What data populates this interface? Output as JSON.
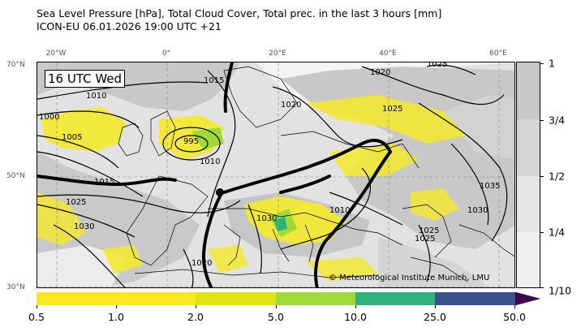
{
  "title": {
    "line1": "Sea Level Pressure [hPa], Total Cloud Cover, Total prec. in the last 3 hours [mm]",
    "line2": "ICON-EU 06.01.2026 19:00 UTC +21"
  },
  "map": {
    "valid_time": "16 UTC Wed",
    "credit": "© Meteorological Institute Munich, LMU",
    "lon_labels": [
      "20°W",
      "0°",
      "20°E",
      "40°E",
      "60°E"
    ],
    "lat_labels": [
      "70°N",
      "50°N",
      "30°N"
    ],
    "isobar_labels": [
      "1025",
      "1010",
      "1015",
      "1020",
      "1000",
      "1005",
      "995",
      "1010",
      "1020",
      "1025",
      "1015",
      "1025",
      "1030",
      "1030",
      "1035",
      "1025",
      "1020",
      "1010",
      "1030",
      "1020",
      "1025"
    ]
  },
  "cloud_cover_legend": {
    "labels": [
      "1",
      "3/4",
      "1/2",
      "1/4",
      "1/10"
    ],
    "colors": [
      "#c8c8c8",
      "#d6d6d6",
      "#e6e6e6",
      "#efefef"
    ]
  },
  "precip_legend": {
    "labels": [
      "0.5",
      "1.0",
      "2.0",
      "5.0",
      "10.0",
      "25.0",
      "50.0"
    ],
    "colors": [
      "#fde725",
      "#fde725",
      "#dfe318",
      "#a0da39",
      "#2db27d",
      "#3b528b",
      "#440154"
    ]
  },
  "colors": {
    "land_line": "#000000",
    "front": "#000000",
    "cloud_heavy": "#c8c8c8",
    "cloud_light": "#e6e6e6",
    "precip_light": "#f5e92a",
    "precip_mid": "#a0da39",
    "precip_high": "#2db27d"
  }
}
